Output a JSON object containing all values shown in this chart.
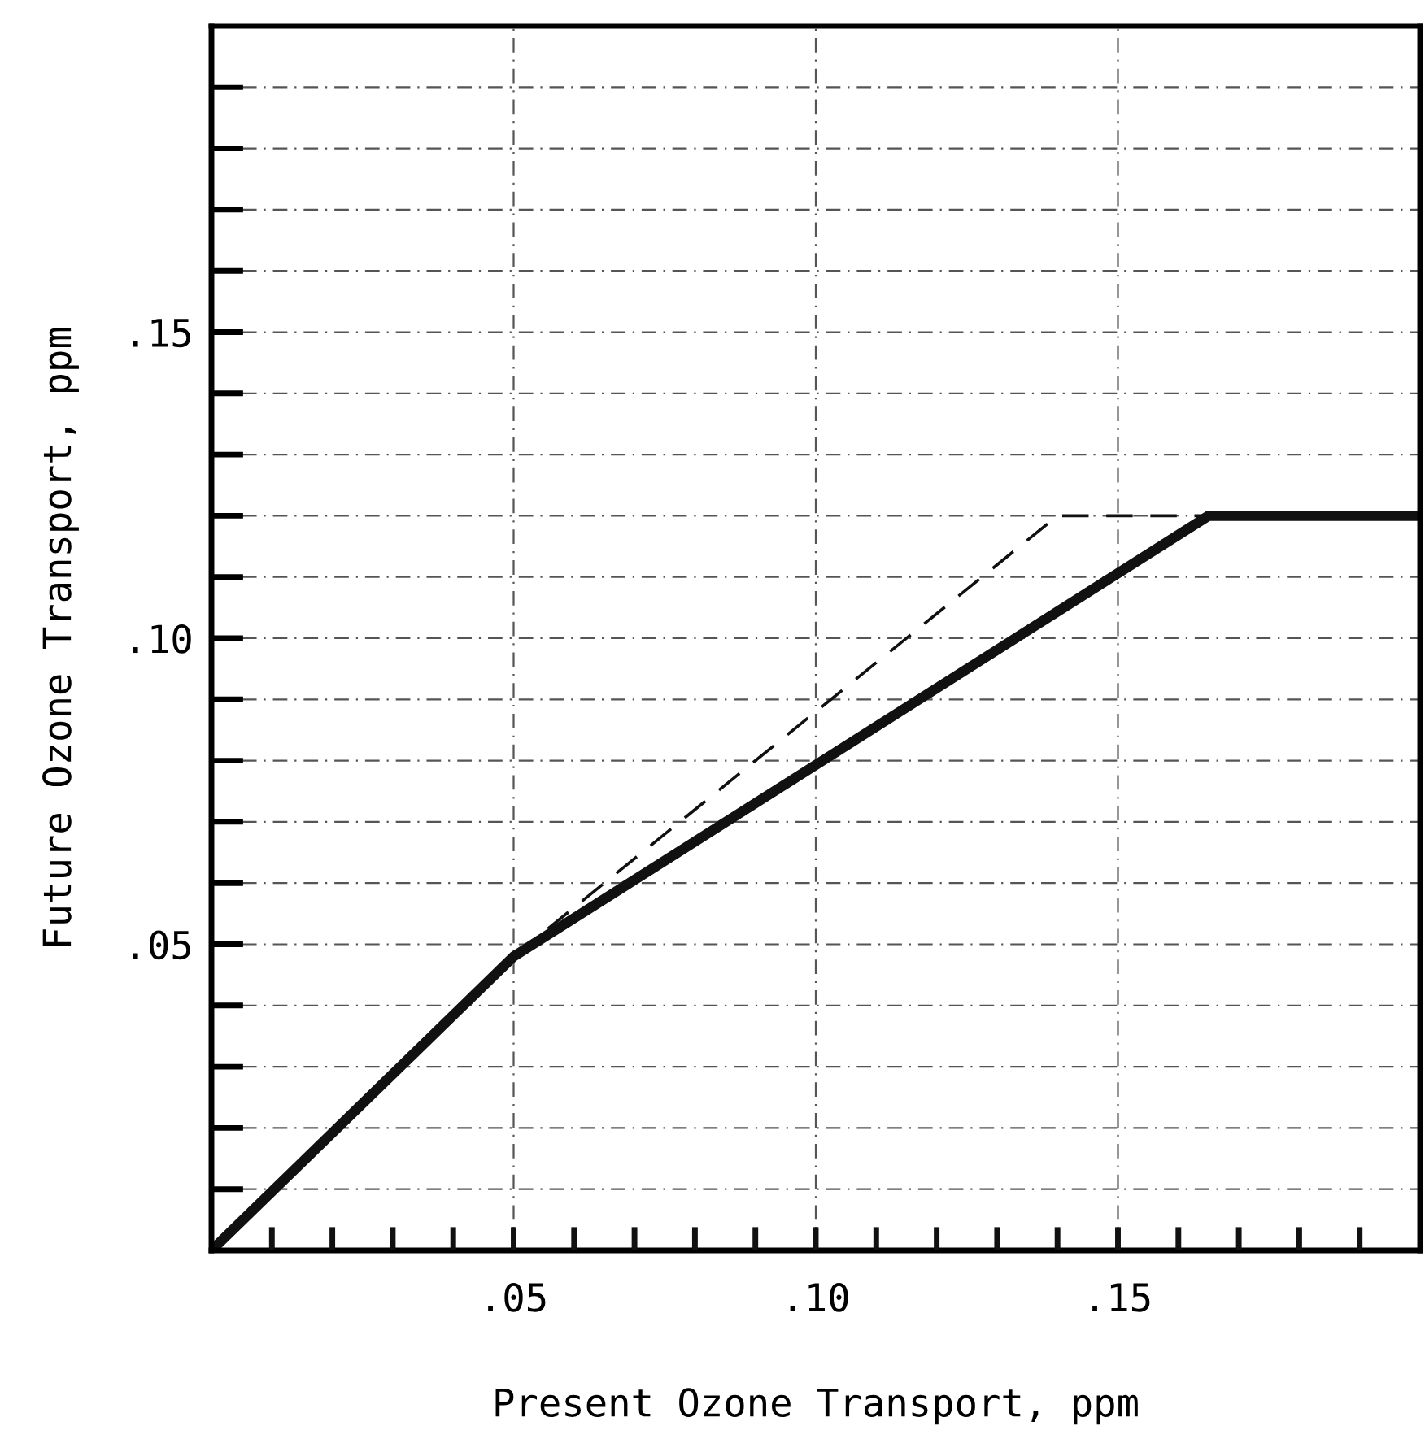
{
  "chart_data": {
    "type": "line",
    "xlabel": "Present Ozone Transport, ppm",
    "ylabel": "Future Ozone Transport, ppm",
    "series": [
      {
        "color": "#111111",
        "line_style": "solid",
        "x": [
          0,
          0.05,
          0.165,
          0.2
        ],
        "values": [
          0,
          0.048,
          0.12,
          0.12
        ]
      },
      {
        "color": "#111111",
        "line_style": "dashed",
        "x": [
          0.05,
          0.14,
          0.165
        ],
        "values": [
          0.048,
          0.12,
          0.12
        ]
      }
    ],
    "xlim": [
      0,
      0.2
    ],
    "ylim": [
      0,
      0.2
    ],
    "xticks": [
      {
        "value": 0.01,
        "label": null
      },
      {
        "value": 0.02,
        "label": null
      },
      {
        "value": 0.03,
        "label": null
      },
      {
        "value": 0.04,
        "label": null
      },
      {
        "value": 0.05,
        "label": ".05"
      },
      {
        "value": 0.06,
        "label": null
      },
      {
        "value": 0.07,
        "label": null
      },
      {
        "value": 0.08,
        "label": null
      },
      {
        "value": 0.09,
        "label": null
      },
      {
        "value": 0.1,
        "label": ".10"
      },
      {
        "value": 0.11,
        "label": null
      },
      {
        "value": 0.12,
        "label": null
      },
      {
        "value": 0.13,
        "label": null
      },
      {
        "value": 0.14,
        "label": null
      },
      {
        "value": 0.15,
        "label": ".15"
      },
      {
        "value": 0.16,
        "label": null
      },
      {
        "value": 0.17,
        "label": null
      },
      {
        "value": 0.18,
        "label": null
      },
      {
        "value": 0.19,
        "label": null
      }
    ],
    "yticks": [
      {
        "value": 0.01,
        "label": null
      },
      {
        "value": 0.02,
        "label": null
      },
      {
        "value": 0.03,
        "label": null
      },
      {
        "value": 0.04,
        "label": null
      },
      {
        "value": 0.05,
        "label": ".05"
      },
      {
        "value": 0.06,
        "label": null
      },
      {
        "value": 0.07,
        "label": null
      },
      {
        "value": 0.08,
        "label": null
      },
      {
        "value": 0.09,
        "label": null
      },
      {
        "value": 0.1,
        "label": ".10"
      },
      {
        "value": 0.11,
        "label": null
      },
      {
        "value": 0.12,
        "label": null
      },
      {
        "value": 0.13,
        "label": null
      },
      {
        "value": 0.14,
        "label": null
      },
      {
        "value": 0.15,
        "label": ".15"
      },
      {
        "value": 0.16,
        "label": null
      },
      {
        "value": 0.17,
        "label": null
      },
      {
        "value": 0.18,
        "label": null
      },
      {
        "value": 0.19,
        "label": null
      }
    ],
    "grid": true,
    "legend": false,
    "marker": "none"
  }
}
